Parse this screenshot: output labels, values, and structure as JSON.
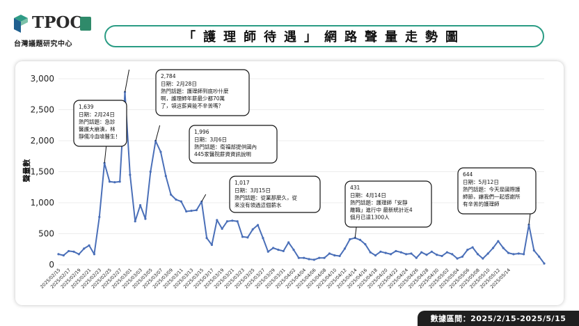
{
  "header": {
    "logo_text": "TPOC",
    "logo_subtitle": "台灣議題研究中心",
    "title": "「護理師待遇」網路聲量走勢圖"
  },
  "footer": {
    "date_range": "數據區間：2025/2/15-2025/5/15"
  },
  "chart_data": {
    "type": "line",
    "ylabel": "聲量數",
    "ylim": [
      0,
      3000
    ],
    "yticks": [
      0,
      500,
      1000,
      1500,
      2000,
      2500,
      3000
    ],
    "ytick_labels": [
      "0",
      "500",
      "1,000",
      "1,500",
      "2,000",
      "2,500",
      "3,000"
    ],
    "xtick_labels": [
      "2025/02/15",
      "2025/02/17",
      "2025/02/19",
      "2025/02/21",
      "2025/02/23",
      "2025/02/25",
      "2025/02/27",
      "2025/03/01",
      "2025/03/03",
      "2025/03/05",
      "2025/03/07",
      "2025/03/09",
      "2025/03/11",
      "2025/03/13",
      "2025/03/15",
      "2025/03/17",
      "2025/03/19",
      "2025/03/21",
      "2025/03/23",
      "2025/03/25",
      "2025/03/27",
      "2025/03/29",
      "2025/03/31",
      "2025/04/02",
      "2025/04/04",
      "2025/04/06",
      "2025/04/08",
      "2025/04/10",
      "2025/04/12",
      "2025/04/14",
      "2025/04/16",
      "2025/04/18",
      "2025/04/20",
      "2025/04/22",
      "2025/04/24",
      "2025/04/26",
      "2025/04/28",
      "2025/04/30",
      "2025/05/02",
      "2025/05/04",
      "2025/05/06",
      "2025/05/08",
      "2025/05/10",
      "2025/05/12",
      "2025/05/14"
    ],
    "line_color": "#4a6fb8",
    "values": [
      170,
      150,
      220,
      210,
      170,
      260,
      310,
      170,
      770,
      1639,
      1340,
      1330,
      1340,
      2784,
      1450,
      700,
      960,
      740,
      1500,
      1996,
      1820,
      1430,
      1130,
      1050,
      1020,
      860,
      870,
      880,
      1017,
      430,
      320,
      720,
      580,
      700,
      710,
      700,
      450,
      440,
      570,
      640,
      430,
      210,
      270,
      240,
      220,
      360,
      240,
      110,
      110,
      90,
      80,
      110,
      110,
      180,
      150,
      140,
      260,
      410,
      431,
      400,
      330,
      200,
      150,
      210,
      190,
      170,
      220,
      200,
      170,
      180,
      110,
      200,
      160,
      210,
      160,
      140,
      200,
      170,
      100,
      130,
      240,
      280,
      170,
      100,
      180,
      270,
      380,
      270,
      190,
      170,
      180,
      170,
      644,
      230,
      130,
      20
    ],
    "annotations": [
      {
        "index": 9,
        "value_label": "1,639",
        "lines": [
          "日期：2月24日",
          "熱門話題：急診",
          "醫護大崩潰，林",
          "靜儀冷血嗆醫生！"
        ]
      },
      {
        "index": 13,
        "value_label": "2,784",
        "lines": [
          "日期：2月28日",
          "熱門話題：護理師到底吵什麼",
          "啊，護理師年薪最少都70萬",
          "了，領這薪資能不辛苦嗎？"
        ]
      },
      {
        "index": 19,
        "value_label": "1,996",
        "lines": [
          "日期：3月6日",
          "熱門話題：衛福部提供國內",
          "445家醫院薪資資訊說明"
        ]
      },
      {
        "index": 28,
        "value_label": "1,017",
        "lines": [
          "日期：3月15日",
          "熱門話題：從業那麼久，從",
          "來沒有領過這個薪水"
        ]
      },
      {
        "index": 58,
        "value_label": "431",
        "lines": [
          "日期：4月14日",
          "熱門話題：護理師「安靜",
          "離職」進行中 最新統計近4",
          "個月已達1300人"
        ]
      },
      {
        "index": 92,
        "value_label": "644",
        "lines": [
          "日期：5月12日",
          "熱門話題：今天是國際護",
          "師節，讓我們一起感謝所",
          "有辛苦的護理師"
        ]
      }
    ]
  }
}
